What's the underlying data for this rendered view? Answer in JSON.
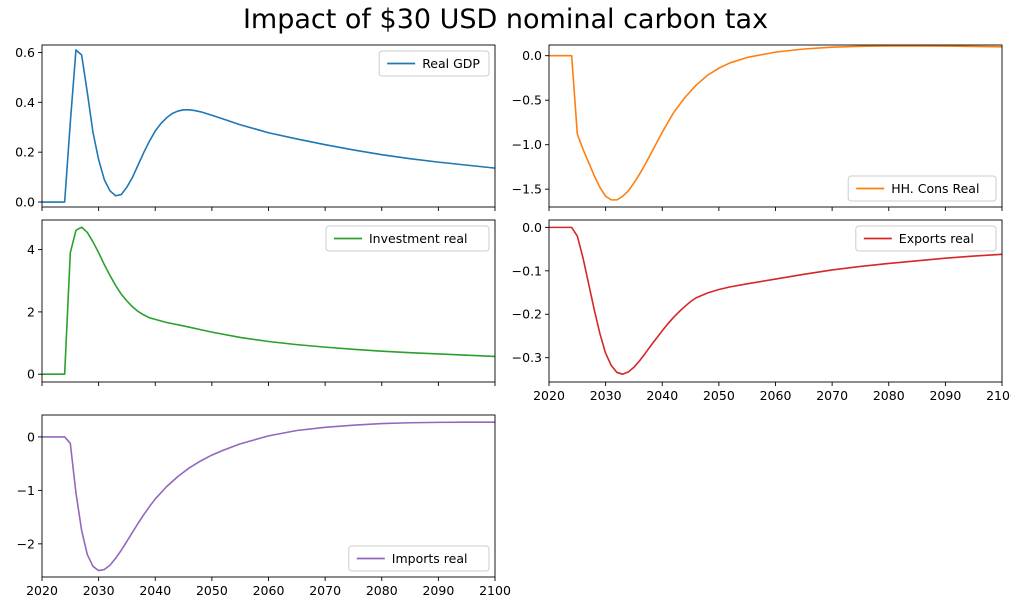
{
  "figure": {
    "title": "Impact of $30 USD nominal carbon tax"
  },
  "chart_data": [
    {
      "type": "line",
      "series": [
        {
          "name": "Real GDP",
          "color": "#1f77b4",
          "x": [
            2020,
            2021,
            2022,
            2023,
            2024,
            2025,
            2026,
            2027,
            2028,
            2029,
            2030,
            2031,
            2032,
            2033,
            2034,
            2035,
            2036,
            2037,
            2038,
            2039,
            2040,
            2041,
            2042,
            2043,
            2044,
            2045,
            2046,
            2047,
            2048,
            2050,
            2052,
            2055,
            2060,
            2065,
            2070,
            2075,
            2080,
            2085,
            2090,
            2095,
            2100
          ],
          "y": [
            0,
            0,
            0,
            0,
            0,
            0.32,
            0.61,
            0.59,
            0.44,
            0.28,
            0.17,
            0.09,
            0.045,
            0.025,
            0.03,
            0.06,
            0.1,
            0.15,
            0.2,
            0.245,
            0.285,
            0.315,
            0.338,
            0.355,
            0.365,
            0.37,
            0.37,
            0.367,
            0.362,
            0.348,
            0.333,
            0.31,
            0.278,
            0.253,
            0.23,
            0.209,
            0.19,
            0.174,
            0.16,
            0.148,
            0.136
          ]
        }
      ],
      "xlim": [
        2020,
        2100
      ],
      "ylim": [
        -0.02,
        0.63
      ],
      "xticks": [
        2020,
        2030,
        2040,
        2050,
        2060,
        2070,
        2080,
        2090,
        2100
      ],
      "xticklabels": [],
      "yticks": [
        0.0,
        0.2,
        0.4,
        0.6
      ],
      "yticklabels": [
        "0.0",
        "0.2",
        "0.4",
        "0.6"
      ],
      "legend": "top-right"
    },
    {
      "type": "line",
      "series": [
        {
          "name": "HH. Cons Real",
          "color": "#ff7f0e",
          "x": [
            2020,
            2021,
            2022,
            2023,
            2024,
            2025,
            2026,
            2027,
            2028,
            2029,
            2030,
            2031,
            2032,
            2033,
            2034,
            2035,
            2036,
            2037,
            2038,
            2039,
            2040,
            2042,
            2044,
            2046,
            2048,
            2050,
            2052,
            2055,
            2060,
            2065,
            2070,
            2075,
            2080,
            2085,
            2090,
            2095,
            2100
          ],
          "y": [
            0,
            0,
            0,
            0,
            0,
            -0.88,
            -1.05,
            -1.2,
            -1.35,
            -1.48,
            -1.58,
            -1.62,
            -1.62,
            -1.58,
            -1.52,
            -1.43,
            -1.33,
            -1.22,
            -1.1,
            -0.98,
            -0.86,
            -0.64,
            -0.47,
            -0.33,
            -0.22,
            -0.14,
            -0.08,
            -0.02,
            0.04,
            0.075,
            0.095,
            0.105,
            0.11,
            0.11,
            0.108,
            0.104,
            0.1
          ]
        }
      ],
      "xlim": [
        2020,
        2100
      ],
      "ylim": [
        -1.7,
        0.12
      ],
      "xticks": [
        2020,
        2030,
        2040,
        2050,
        2060,
        2070,
        2080,
        2090,
        2100
      ],
      "xticklabels": [],
      "yticks": [
        0.0,
        -0.5,
        -1.0,
        -1.5
      ],
      "yticklabels": [
        "0.0",
        "−0.5",
        "−1.0",
        "−1.5"
      ],
      "legend": "bottom-right"
    },
    {
      "type": "line",
      "series": [
        {
          "name": "Investment real",
          "color": "#2ca02c",
          "x": [
            2020,
            2021,
            2022,
            2023,
            2024,
            2025,
            2026,
            2027,
            2028,
            2029,
            2030,
            2031,
            2032,
            2033,
            2034,
            2035,
            2036,
            2037,
            2038,
            2039,
            2040,
            2042,
            2045,
            2050,
            2055,
            2060,
            2065,
            2070,
            2075,
            2080,
            2085,
            2090,
            2095,
            2100
          ],
          "y": [
            0,
            0,
            0,
            0,
            0,
            3.9,
            4.62,
            4.72,
            4.55,
            4.25,
            3.9,
            3.52,
            3.17,
            2.85,
            2.57,
            2.35,
            2.16,
            2.01,
            1.9,
            1.81,
            1.76,
            1.66,
            1.55,
            1.35,
            1.18,
            1.05,
            0.95,
            0.87,
            0.8,
            0.74,
            0.69,
            0.65,
            0.61,
            0.57
          ]
        }
      ],
      "xlim": [
        2020,
        2100
      ],
      "ylim": [
        -0.25,
        4.95
      ],
      "xticks": [
        2020,
        2030,
        2040,
        2050,
        2060,
        2070,
        2080,
        2090,
        2100
      ],
      "xticklabels": [],
      "yticks": [
        0,
        2,
        4
      ],
      "yticklabels": [
        "0",
        "2",
        "4"
      ],
      "legend": "top-right"
    },
    {
      "type": "line",
      "series": [
        {
          "name": "Exports real",
          "color": "#d62728",
          "x": [
            2020,
            2021,
            2022,
            2023,
            2024,
            2025,
            2026,
            2027,
            2028,
            2029,
            2030,
            2031,
            2032,
            2033,
            2034,
            2035,
            2036,
            2037,
            2038,
            2039,
            2040,
            2041,
            2042,
            2043,
            2044,
            2045,
            2046,
            2048,
            2050,
            2052,
            2055,
            2060,
            2065,
            2070,
            2075,
            2080,
            2085,
            2090,
            2095,
            2100
          ],
          "y": [
            0,
            0,
            0,
            0,
            0,
            -0.02,
            -0.07,
            -0.13,
            -0.19,
            -0.245,
            -0.29,
            -0.318,
            -0.334,
            -0.338,
            -0.333,
            -0.322,
            -0.307,
            -0.29,
            -0.272,
            -0.255,
            -0.238,
            -0.222,
            -0.207,
            -0.194,
            -0.182,
            -0.171,
            -0.162,
            -0.151,
            -0.143,
            -0.137,
            -0.13,
            -0.119,
            -0.108,
            -0.098,
            -0.09,
            -0.083,
            -0.077,
            -0.071,
            -0.066,
            -0.062
          ]
        }
      ],
      "xlim": [
        2020,
        2100
      ],
      "ylim": [
        -0.356,
        0.017
      ],
      "xticks": [
        2020,
        2030,
        2040,
        2050,
        2060,
        2070,
        2080,
        2090,
        2100
      ],
      "xticklabels": [
        "2020",
        "2030",
        "2040",
        "2050",
        "2060",
        "2070",
        "2080",
        "2090",
        "2100"
      ],
      "yticks": [
        0.0,
        -0.1,
        -0.2,
        -0.3
      ],
      "yticklabels": [
        "0.0",
        "−0.1",
        "−0.2",
        "−0.3"
      ],
      "legend": "top-right"
    },
    {
      "type": "line",
      "series": [
        {
          "name": "Imports real",
          "color": "#9467bd",
          "x": [
            2020,
            2021,
            2022,
            2023,
            2024,
            2025,
            2026,
            2027,
            2028,
            2029,
            2030,
            2031,
            2032,
            2033,
            2034,
            2035,
            2036,
            2037,
            2038,
            2039,
            2040,
            2042,
            2044,
            2046,
            2048,
            2050,
            2052,
            2055,
            2060,
            2065,
            2070,
            2075,
            2080,
            2085,
            2090,
            2095,
            2100
          ],
          "y": [
            0,
            0,
            0,
            0,
            0,
            -0.12,
            -1.05,
            -1.75,
            -2.2,
            -2.42,
            -2.5,
            -2.48,
            -2.4,
            -2.27,
            -2.12,
            -1.95,
            -1.78,
            -1.61,
            -1.45,
            -1.3,
            -1.16,
            -0.93,
            -0.74,
            -0.58,
            -0.45,
            -0.34,
            -0.25,
            -0.13,
            0.02,
            0.12,
            0.18,
            0.22,
            0.25,
            0.265,
            0.272,
            0.275,
            0.275
          ]
        }
      ],
      "xlim": [
        2020,
        2100
      ],
      "ylim": [
        -2.62,
        0.41
      ],
      "xticks": [
        2020,
        2030,
        2040,
        2050,
        2060,
        2070,
        2080,
        2090,
        2100
      ],
      "xticklabels": [
        "2020",
        "2030",
        "2040",
        "2050",
        "2060",
        "2070",
        "2080",
        "2090",
        "2100"
      ],
      "yticks": [
        0,
        -1,
        -2
      ],
      "yticklabels": [
        "0",
        "−1",
        "−2"
      ],
      "legend": "bottom-right"
    }
  ]
}
